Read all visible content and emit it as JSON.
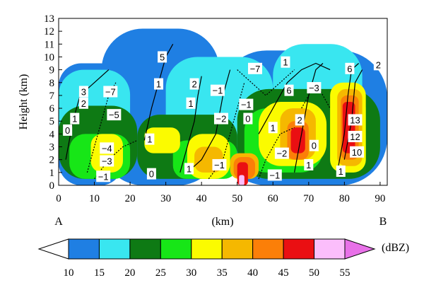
{
  "chart_data": {
    "type": "heatmap",
    "description_text": {
      "xlabel": "(km)",
      "ylabel": "Height (km)",
      "endpoint_left": "A",
      "endpoint_right": "B",
      "colorbar_unit": "(dBZ)"
    },
    "xlim": [
      0,
      92
    ],
    "ylim": [
      0,
      13
    ],
    "x_ticks": [
      "0",
      "10",
      "20",
      "30",
      "40",
      "50",
      "60",
      "70",
      "80",
      "90"
    ],
    "y_ticks": [
      "0",
      "1",
      "2",
      "3",
      "4",
      "5",
      "6",
      "7",
      "8",
      "9",
      "10",
      "11",
      "12",
      "13"
    ],
    "colorbar": {
      "levels": [
        "10",
        "15",
        "20",
        "25",
        "30",
        "35",
        "40",
        "45",
        "50",
        "55"
      ],
      "colors": [
        "#1f7fe3",
        "#39e6f0",
        "#0e7a14",
        "#17e617",
        "#fbfb00",
        "#f5b800",
        "#fb7f08",
        "#ea0f12",
        "#fbbefb",
        "#e871e8"
      ],
      "over_color": "#e871e8",
      "under_color": "#ffffff"
    },
    "reflectivity_cells": [
      {
        "x": [
          0,
          18
        ],
        "y": [
          0,
          9.5
        ],
        "level": 0
      },
      {
        "x": [
          12,
          45
        ],
        "y": [
          0,
          12.2
        ],
        "level": 0
      },
      {
        "x": [
          45,
          92
        ],
        "y": [
          0,
          10.5
        ],
        "level": 0
      },
      {
        "x": [
          0,
          20
        ],
        "y": [
          3,
          9
        ],
        "level": 1
      },
      {
        "x": [
          30,
          60
        ],
        "y": [
          3,
          10
        ],
        "level": 1
      },
      {
        "x": [
          60,
          85
        ],
        "y": [
          4,
          11
        ],
        "level": 1
      },
      {
        "x": [
          0,
          22
        ],
        "y": [
          0.5,
          6.2
        ],
        "level": 2
      },
      {
        "x": [
          22,
          50
        ],
        "y": [
          0.5,
          5.5
        ],
        "level": 2
      },
      {
        "x": [
          50,
          90
        ],
        "y": [
          0.5,
          7.5
        ],
        "level": 2
      },
      {
        "x": [
          3,
          20
        ],
        "y": [
          0.5,
          4
        ],
        "level": 3
      },
      {
        "x": [
          32,
          50
        ],
        "y": [
          0.5,
          3.5
        ],
        "level": 3
      },
      {
        "x": [
          52,
          74
        ],
        "y": [
          1,
          6
        ],
        "level": 3
      },
      {
        "x": [
          76,
          86
        ],
        "y": [
          1,
          7
        ],
        "level": 3
      },
      {
        "x": [
          9,
          18
        ],
        "y": [
          1,
          4
        ],
        "level": 4
      },
      {
        "x": [
          24,
          34
        ],
        "y": [
          2.5,
          4.5
        ],
        "level": 4
      },
      {
        "x": [
          36,
          48
        ],
        "y": [
          0.5,
          4
        ],
        "level": 4
      },
      {
        "x": [
          56,
          75
        ],
        "y": [
          1.5,
          6.5
        ],
        "level": 4
      },
      {
        "x": [
          76,
          86
        ],
        "y": [
          1,
          8
        ],
        "level": 4
      },
      {
        "x": [
          38,
          46
        ],
        "y": [
          1,
          3
        ],
        "level": 5
      },
      {
        "x": [
          48,
          56
        ],
        "y": [
          0.5,
          2.5
        ],
        "level": 5
      },
      {
        "x": [
          62,
          72
        ],
        "y": [
          2,
          6
        ],
        "level": 5
      },
      {
        "x": [
          78,
          85
        ],
        "y": [
          1.5,
          7.5
        ],
        "level": 5
      },
      {
        "x": [
          49,
          55
        ],
        "y": [
          0.5,
          2.2
        ],
        "level": 6
      },
      {
        "x": [
          64,
          70
        ],
        "y": [
          2,
          5
        ],
        "level": 6
      },
      {
        "x": [
          79,
          84
        ],
        "y": [
          2,
          7
        ],
        "level": 6
      },
      {
        "x": [
          50,
          53
        ],
        "y": [
          0,
          1.8
        ],
        "level": 7
      },
      {
        "x": [
          65,
          69
        ],
        "y": [
          2.5,
          4.5
        ],
        "level": 7
      },
      {
        "x": [
          79.5,
          83
        ],
        "y": [
          2.5,
          6.5
        ],
        "level": 7
      },
      {
        "x": [
          50.5,
          52
        ],
        "y": [
          0,
          0.8
        ],
        "level": 8
      }
    ],
    "contour_labels": [
      {
        "text": "5",
        "x": 29,
        "y": 10
      },
      {
        "text": "1",
        "x": 28,
        "y": 7.9
      },
      {
        "text": "2",
        "x": 38,
        "y": 7.9
      },
      {
        "text": "-1",
        "x": 44.5,
        "y": 7.4
      },
      {
        "text": "1",
        "x": 37,
        "y": 6.4
      },
      {
        "text": "3",
        "x": 7,
        "y": 7.3
      },
      {
        "text": "2",
        "x": 7,
        "y": 6.4
      },
      {
        "text": "-7",
        "x": 14.5,
        "y": 7.3
      },
      {
        "text": "-5",
        "x": 15.5,
        "y": 5.5
      },
      {
        "text": "1",
        "x": 4.5,
        "y": 5.2
      },
      {
        "text": "0",
        "x": 2.5,
        "y": 4.3
      },
      {
        "text": "1",
        "x": 25.5,
        "y": 3.6
      },
      {
        "text": "-4",
        "x": 13.5,
        "y": 2.9
      },
      {
        "text": "-3",
        "x": 13.5,
        "y": 1.9
      },
      {
        "text": "-1",
        "x": 12.5,
        "y": 0.7
      },
      {
        "text": "0",
        "x": 26,
        "y": 0.9
      },
      {
        "text": "1",
        "x": 36.5,
        "y": 1.3
      },
      {
        "text": "-2",
        "x": 45.5,
        "y": 5.2
      },
      {
        "text": "-1",
        "x": 52.5,
        "y": 6.3
      },
      {
        "text": "0",
        "x": 53,
        "y": 5.2
      },
      {
        "text": "-7",
        "x": 55,
        "y": 9.1
      },
      {
        "text": "1",
        "x": 63.5,
        "y": 9.6
      },
      {
        "text": "6",
        "x": 64.5,
        "y": 7.4
      },
      {
        "text": "-3",
        "x": 71.5,
        "y": 7.6
      },
      {
        "text": "1",
        "x": 60,
        "y": 4.5
      },
      {
        "text": "2",
        "x": 67.5,
        "y": 5.1
      },
      {
        "text": "-2",
        "x": 62.5,
        "y": 2.5
      },
      {
        "text": "0",
        "x": 71.5,
        "y": 3.1
      },
      {
        "text": "-1",
        "x": 45,
        "y": 1.6
      },
      {
        "text": "-1",
        "x": 60.5,
        "y": 0.8
      },
      {
        "text": "1",
        "x": 70,
        "y": 1.6
      },
      {
        "text": "1",
        "x": 79,
        "y": 1.1
      },
      {
        "text": "6",
        "x": 81.5,
        "y": 9.1
      },
      {
        "text": "2",
        "x": 89.5,
        "y": 9.4
      },
      {
        "text": "13",
        "x": 83,
        "y": 5.1
      },
      {
        "text": "12",
        "x": 83,
        "y": 3.8
      },
      {
        "text": "10",
        "x": 83.5,
        "y": 2.6
      }
    ],
    "contour_lines": [
      {
        "style": "solid",
        "points": [
          [
            2,
            2
          ],
          [
            4,
            5
          ],
          [
            6,
            7
          ],
          [
            10,
            8
          ],
          [
            14,
            9
          ]
        ]
      },
      {
        "style": "solid",
        "points": [
          [
            24,
            3.5
          ],
          [
            26,
            6
          ],
          [
            28,
            8
          ],
          [
            30,
            10
          ],
          [
            32,
            11
          ]
        ]
      },
      {
        "style": "solid",
        "points": [
          [
            34,
            1
          ],
          [
            36,
            3
          ],
          [
            38,
            5
          ],
          [
            39,
            7
          ],
          [
            40,
            8.5
          ]
        ]
      },
      {
        "style": "solid",
        "points": [
          [
            36,
            1
          ],
          [
            40,
            2
          ],
          [
            44,
            4
          ],
          [
            46,
            7
          ],
          [
            48,
            9
          ]
        ]
      },
      {
        "style": "solid",
        "points": [
          [
            56,
            4
          ],
          [
            60,
            6
          ],
          [
            64,
            8
          ],
          [
            68,
            9
          ],
          [
            72,
            9.5
          ],
          [
            76,
            9
          ]
        ]
      },
      {
        "style": "solid",
        "points": [
          [
            66,
            1
          ],
          [
            68,
            4
          ],
          [
            70,
            7
          ],
          [
            72,
            9
          ],
          [
            74,
            9.5
          ]
        ]
      },
      {
        "style": "solid",
        "points": [
          [
            78,
            1
          ],
          [
            80,
            4
          ],
          [
            81,
            7
          ],
          [
            82,
            9
          ],
          [
            84,
            9.5
          ]
        ]
      },
      {
        "style": "solid",
        "points": [
          [
            80,
            2
          ],
          [
            82,
            5
          ],
          [
            83,
            8
          ],
          [
            85,
            9
          ]
        ]
      },
      {
        "style": "dashed",
        "points": [
          [
            8,
            1
          ],
          [
            10,
            3
          ],
          [
            12,
            5
          ],
          [
            14,
            7
          ],
          [
            16,
            8
          ]
        ]
      },
      {
        "style": "dashed",
        "points": [
          [
            10,
            0.5
          ],
          [
            14,
            2
          ],
          [
            18,
            3
          ],
          [
            22,
            3.5
          ]
        ]
      },
      {
        "style": "dashed",
        "points": [
          [
            42,
            0.5
          ],
          [
            46,
            2
          ],
          [
            48,
            4
          ],
          [
            50,
            6
          ],
          [
            52,
            8
          ]
        ]
      },
      {
        "style": "dashed",
        "points": [
          [
            56,
            0.5
          ],
          [
            58,
            2
          ],
          [
            60,
            3
          ],
          [
            62,
            4
          ],
          [
            66,
            4.5
          ]
        ]
      },
      {
        "style": "dashed",
        "points": [
          [
            50,
            9
          ],
          [
            54,
            8
          ],
          [
            58,
            7
          ],
          [
            62,
            8
          ],
          [
            66,
            9
          ]
        ]
      },
      {
        "style": "dashed",
        "points": [
          [
            68,
            6
          ],
          [
            70,
            7
          ],
          [
            72,
            8
          ],
          [
            74,
            7
          ],
          [
            76,
            6
          ]
        ]
      }
    ]
  }
}
